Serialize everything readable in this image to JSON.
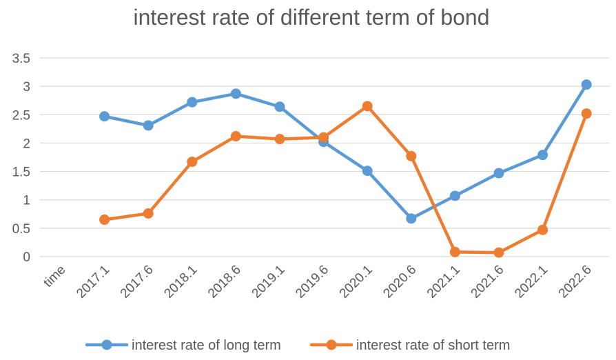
{
  "chart_data": {
    "type": "line",
    "title": "interest rate of different term of bond",
    "xlabel": "",
    "ylabel": "",
    "categories": [
      "time",
      "2017.1",
      "2017.6",
      "2018.1",
      "2018.6",
      "2019.1",
      "2019.6",
      "2020.1",
      "2020.6",
      "2021.1",
      "2021.6",
      "2022.1",
      "2022.6"
    ],
    "yticks": [
      "0",
      "0.5",
      "1",
      "1.5",
      "2",
      "2.5",
      "3",
      "3.5"
    ],
    "ylim": [
      0,
      3.5
    ],
    "grid": true,
    "legend_position": "bottom",
    "series": [
      {
        "name": "interest rate of long term",
        "color": "#5b9bd5",
        "values": [
          null,
          2.47,
          2.31,
          2.72,
          2.87,
          2.64,
          2.02,
          1.51,
          0.67,
          1.07,
          1.47,
          1.79,
          3.03
        ]
      },
      {
        "name": "interest rate of short term",
        "color": "#ed7d31",
        "values": [
          null,
          0.65,
          0.76,
          1.67,
          2.12,
          2.07,
          2.1,
          2.65,
          1.77,
          0.08,
          0.07,
          0.47,
          2.52
        ]
      }
    ]
  }
}
